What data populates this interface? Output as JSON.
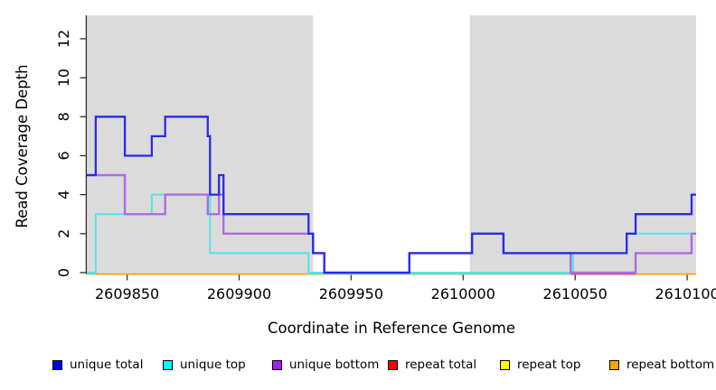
{
  "chart_data": {
    "type": "line",
    "subtype": "step-coverage-plot",
    "title": "",
    "xlabel": "Coordinate in Reference Genome",
    "ylabel": "Read Coverage Depth",
    "x_range": [
      2609832,
      2610104
    ],
    "y_range": [
      0,
      13.2
    ],
    "x_ticks": [
      2609850,
      2609900,
      2609950,
      2610000,
      2610050,
      2610100
    ],
    "y_ticks": [
      0,
      2,
      4,
      6,
      8,
      10,
      12
    ],
    "grid": false,
    "legend_position": "bottom",
    "shaded_regions": [
      {
        "from": 2609832,
        "to": 2609933,
        "color": "#DBDBDB",
        "meaning": "repeat region"
      },
      {
        "from": 2610003,
        "to": 2610104,
        "color": "#DBDBDB",
        "meaning": "repeat region"
      }
    ],
    "series": [
      {
        "name": "unique total",
        "swatch_color": "#0000FF",
        "line_color": "#2A2AE8",
        "line_width": 2.3,
        "layer": 3,
        "draw": true,
        "steps": [
          [
            2609832,
            5
          ],
          [
            2609836,
            8
          ],
          [
            2609849,
            6
          ],
          [
            2609861,
            7
          ],
          [
            2609867,
            8
          ],
          [
            2609886,
            7
          ],
          [
            2609887,
            4
          ],
          [
            2609891,
            5
          ],
          [
            2609893,
            3
          ],
          [
            2609931,
            2
          ],
          [
            2609933,
            1
          ],
          [
            2609938,
            0
          ],
          [
            2609976,
            1
          ],
          [
            2610004,
            2
          ],
          [
            2610018,
            1
          ],
          [
            2610073,
            2
          ],
          [
            2610077,
            3
          ],
          [
            2610102,
            4
          ]
        ]
      },
      {
        "name": "unique top",
        "swatch_color": "#00FFFF",
        "line_color": "#55E2E8",
        "line_width": 2,
        "layer": 1,
        "draw": true,
        "steps": [
          [
            2609832,
            0
          ],
          [
            2609836,
            3
          ],
          [
            2609861,
            4
          ],
          [
            2609887,
            1
          ],
          [
            2609931,
            0
          ],
          [
            2610049,
            1
          ],
          [
            2610073,
            2
          ]
        ]
      },
      {
        "name": "unique bottom",
        "swatch_color": "#A020F0",
        "line_color": "#AD6CE3",
        "line_width": 2.4,
        "layer": 2,
        "draw": true,
        "steps": [
          [
            2609832,
            5
          ],
          [
            2609849,
            3
          ],
          [
            2609867,
            4
          ],
          [
            2609886,
            3
          ],
          [
            2609891,
            4
          ],
          [
            2609893,
            2
          ],
          [
            2609933,
            1
          ],
          [
            2609938,
            0
          ],
          [
            2609976,
            1
          ],
          [
            2610004,
            2
          ],
          [
            2610018,
            1
          ],
          [
            2610048,
            0
          ],
          [
            2610077,
            1
          ],
          [
            2610102,
            2
          ]
        ]
      },
      {
        "name": "repeat total",
        "swatch_color": "#FF0000",
        "line_color": "#D64A6B",
        "line_width": 1.6,
        "layer": 0,
        "draw": false,
        "steps": [
          [
            2609832,
            0
          ]
        ]
      },
      {
        "name": "repeat top",
        "swatch_color": "#FFFF00",
        "line_color": "#FFFF00",
        "line_width": 1.6,
        "layer": 0,
        "draw": false,
        "steps": [
          [
            2609832,
            0
          ]
        ]
      },
      {
        "name": "repeat bottom",
        "swatch_color": "#FFA500",
        "line_color": "#FF9C1E",
        "line_width": 2,
        "layer": 0,
        "draw": false,
        "steps": [
          [
            2609832,
            0
          ]
        ]
      }
    ],
    "zero_line_segments": [
      {
        "from": 2609832,
        "to": 2609836,
        "color": "#8FCD8F"
      },
      {
        "from": 2609836,
        "to": 2609931,
        "color": "#FF9C1E"
      },
      {
        "from": 2609931,
        "to": 2610048,
        "color": "#8FCD8F"
      },
      {
        "from": 2610048,
        "to": 2610077,
        "color": "#D64A6B"
      },
      {
        "from": 2610077,
        "to": 2610104,
        "color": "#FF9C1E"
      }
    ]
  }
}
